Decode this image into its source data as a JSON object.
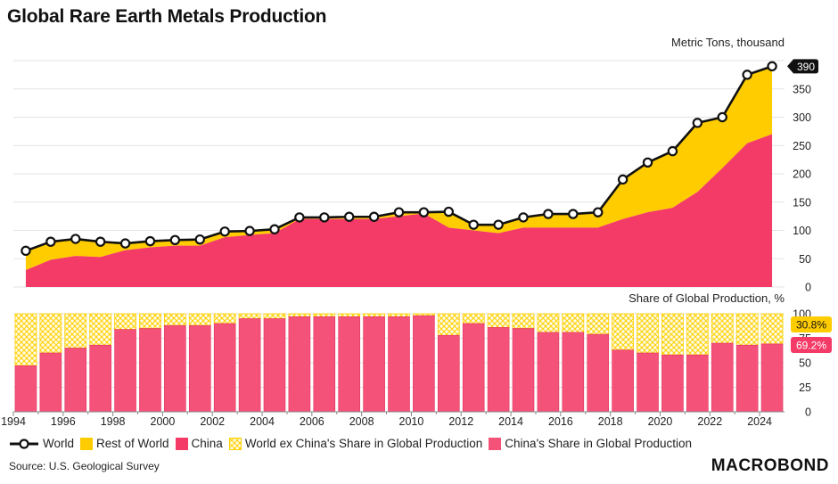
{
  "title": "Global Rare Earth Metals Production",
  "source": "Source: U.S. Geological Survey",
  "brand": "MACROBOND",
  "colors": {
    "world": "#111111",
    "rest": "#FFCC00",
    "china": "#F43A67",
    "chinaShare": "#F55279",
    "exShare": "#FFD84D"
  },
  "legend": {
    "world": "World",
    "rest": "Rest of World",
    "china": "China",
    "exShare": "World ex China's Share in Global Production",
    "chinaShare": "China's Share in Global Production"
  },
  "chart_data": [
    {
      "type": "area",
      "title": "Metric Tons, thousand",
      "x": [
        1994,
        1995,
        1996,
        1997,
        1998,
        1999,
        2000,
        2001,
        2002,
        2003,
        2004,
        2005,
        2006,
        2007,
        2008,
        2009,
        2010,
        2011,
        2012,
        2013,
        2014,
        2015,
        2016,
        2017,
        2018,
        2019,
        2020,
        2021,
        2022,
        2023,
        2024
      ],
      "series": [
        {
          "name": "World",
          "values": [
            64,
            80,
            85,
            80,
            77,
            81,
            83,
            84,
            98,
            99,
            102,
            123,
            123,
            124,
            124,
            132,
            132,
            133,
            110,
            110,
            123,
            129,
            129,
            132,
            190,
            220,
            240,
            290,
            300,
            375,
            390
          ]
        },
        {
          "name": "China",
          "values": [
            30,
            48,
            55,
            53,
            65,
            70,
            73,
            73,
            88,
            92,
            95,
            120,
            120,
            120,
            120,
            125,
            130,
            105,
            100,
            95,
            105,
            105,
            105,
            105,
            120,
            132,
            140,
            168,
            210,
            254,
            270
          ]
        }
      ],
      "ylim": [
        0,
        400
      ],
      "yticks": [
        "0",
        "50",
        "100",
        "150",
        "200",
        "250",
        "300",
        "350"
      ],
      "last_label": "390"
    },
    {
      "type": "bar",
      "title": "Share of Global Production, %",
      "x": [
        1994,
        1995,
        1996,
        1997,
        1998,
        1999,
        2000,
        2001,
        2002,
        2003,
        2004,
        2005,
        2006,
        2007,
        2008,
        2009,
        2010,
        2011,
        2012,
        2013,
        2014,
        2015,
        2016,
        2017,
        2018,
        2019,
        2020,
        2021,
        2022,
        2023,
        2024
      ],
      "series": [
        {
          "name": "China's Share in Global Production",
          "values": [
            47,
            60,
            65,
            68,
            84,
            85,
            88,
            88,
            90,
            95,
            95,
            97,
            97,
            97,
            97,
            97,
            98,
            78,
            90,
            86,
            85,
            81,
            81,
            79,
            63,
            60,
            58,
            58,
            70,
            68,
            69.2
          ]
        },
        {
          "name": "World ex China's Share in Global Production",
          "values": [
            53,
            40,
            35,
            32,
            16,
            15,
            12,
            12,
            10,
            5,
            5,
            3,
            3,
            3,
            3,
            3,
            2,
            22,
            10,
            14,
            15,
            19,
            19,
            21,
            37,
            40,
            42,
            42,
            30,
            32,
            30.8
          ]
        }
      ],
      "ylim": [
        0,
        100
      ],
      "yticks": [
        "0",
        "25",
        "50",
        "75",
        "100"
      ],
      "xticks": [
        "1994",
        "1996",
        "1998",
        "2000",
        "2002",
        "2004",
        "2006",
        "2008",
        "2010",
        "2012",
        "2014",
        "2016",
        "2018",
        "2020",
        "2022",
        "2024"
      ],
      "last_labels": {
        "china": "69.2%",
        "ex": "30.8%"
      }
    }
  ]
}
